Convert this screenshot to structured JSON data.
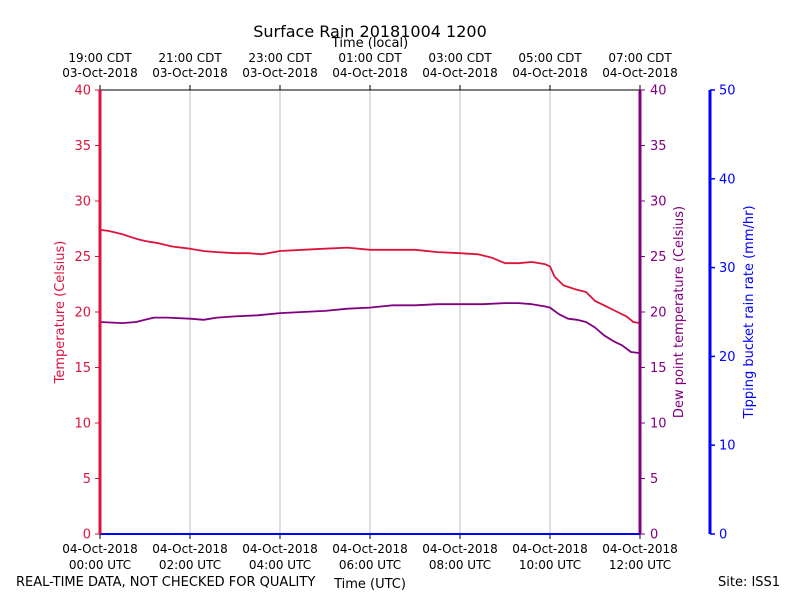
{
  "chart_data": {
    "type": "line",
    "title": "Surface Rain 20181004 1200",
    "top_axis_label": "Time (local)",
    "xlabel": "Time (UTC)",
    "ylabel_left": "Temperature (Celsius)",
    "ylabel_right": "Dew point temperature (Celsius)",
    "ylabel_far_right": "Tipping bucket rain rate (mm/hr)",
    "x_hours_utc": [
      0,
      2,
      4,
      6,
      8,
      10,
      12
    ],
    "xlim": [
      0,
      12
    ],
    "ylim_temp": [
      0,
      40
    ],
    "ylim_dew": [
      0,
      40
    ],
    "ylim_rain": [
      0,
      50
    ],
    "temp_ticks": [
      "0",
      "5",
      "10",
      "15",
      "20",
      "25",
      "30",
      "35",
      "40"
    ],
    "dew_ticks": [
      "0",
      "5",
      "10",
      "15",
      "20",
      "25",
      "30",
      "35",
      "40"
    ],
    "rain_ticks": [
      "0",
      "10",
      "20",
      "30",
      "40",
      "50"
    ],
    "bottom_ticks": [
      {
        "date": "04-Oct-2018",
        "time": "00:00 UTC"
      },
      {
        "date": "04-Oct-2018",
        "time": "02:00 UTC"
      },
      {
        "date": "04-Oct-2018",
        "time": "04:00 UTC"
      },
      {
        "date": "04-Oct-2018",
        "time": "06:00 UTC"
      },
      {
        "date": "04-Oct-2018",
        "time": "08:00 UTC"
      },
      {
        "date": "04-Oct-2018",
        "time": "10:00 UTC"
      },
      {
        "date": "04-Oct-2018",
        "time": "12:00 UTC"
      }
    ],
    "top_ticks": [
      {
        "time": "19:00 CDT",
        "date": "03-Oct-2018"
      },
      {
        "time": "21:00 CDT",
        "date": "03-Oct-2018"
      },
      {
        "time": "23:00 CDT",
        "date": "03-Oct-2018"
      },
      {
        "time": "01:00 CDT",
        "date": "04-Oct-2018"
      },
      {
        "time": "03:00 CDT",
        "date": "04-Oct-2018"
      },
      {
        "time": "05:00 CDT",
        "date": "04-Oct-2018"
      },
      {
        "time": "07:00 CDT",
        "date": "04-Oct-2018"
      }
    ],
    "series": [
      {
        "name": "Temperature",
        "color": "#dc143c",
        "x": [
          0,
          0.2,
          0.5,
          0.8,
          1.0,
          1.3,
          1.6,
          2.0,
          2.3,
          2.6,
          3.0,
          3.3,
          3.6,
          4.0,
          4.5,
          5.0,
          5.5,
          6.0,
          6.5,
          7.0,
          7.5,
          8.0,
          8.4,
          8.7,
          9.0,
          9.3,
          9.6,
          9.9,
          10.0,
          10.1,
          10.3,
          10.6,
          10.8,
          11.0,
          11.2,
          11.5,
          11.7,
          11.85,
          12.0
        ],
        "values": [
          27.4,
          27.3,
          27.0,
          26.6,
          26.4,
          26.2,
          25.9,
          25.7,
          25.5,
          25.4,
          25.3,
          25.3,
          25.2,
          25.5,
          25.6,
          25.7,
          25.8,
          25.6,
          25.6,
          25.6,
          25.4,
          25.3,
          25.2,
          24.9,
          24.4,
          24.4,
          24.5,
          24.3,
          24.1,
          23.2,
          22.4,
          22.0,
          21.8,
          21.0,
          20.6,
          20.0,
          19.6,
          19.1,
          19.0
        ]
      },
      {
        "name": "Dew point",
        "color": "#800080",
        "x": [
          0,
          0.5,
          0.8,
          1.0,
          1.2,
          1.5,
          2.0,
          2.3,
          2.6,
          3.0,
          3.5,
          4.0,
          4.5,
          5.0,
          5.5,
          6.0,
          6.5,
          7.0,
          7.5,
          8.0,
          8.5,
          9.0,
          9.3,
          9.6,
          9.9,
          10.0,
          10.2,
          10.4,
          10.6,
          10.8,
          11.0,
          11.2,
          11.4,
          11.6,
          11.8,
          12.0
        ],
        "values": [
          19.1,
          19.0,
          19.1,
          19.3,
          19.5,
          19.5,
          19.4,
          19.3,
          19.5,
          19.6,
          19.7,
          19.9,
          20.0,
          20.1,
          20.3,
          20.4,
          20.6,
          20.6,
          20.7,
          20.7,
          20.7,
          20.8,
          20.8,
          20.7,
          20.5,
          20.4,
          19.8,
          19.4,
          19.3,
          19.1,
          18.6,
          17.9,
          17.4,
          17.0,
          16.4,
          16.3
        ]
      },
      {
        "name": "Rain rate",
        "color": "#0000ff",
        "axis": "rain",
        "x": [
          0,
          12
        ],
        "values": [
          0,
          0
        ]
      }
    ]
  },
  "footer": {
    "left_note": "REAL-TIME DATA, NOT CHECKED FOR QUALITY",
    "site": "Site: ISS1"
  }
}
